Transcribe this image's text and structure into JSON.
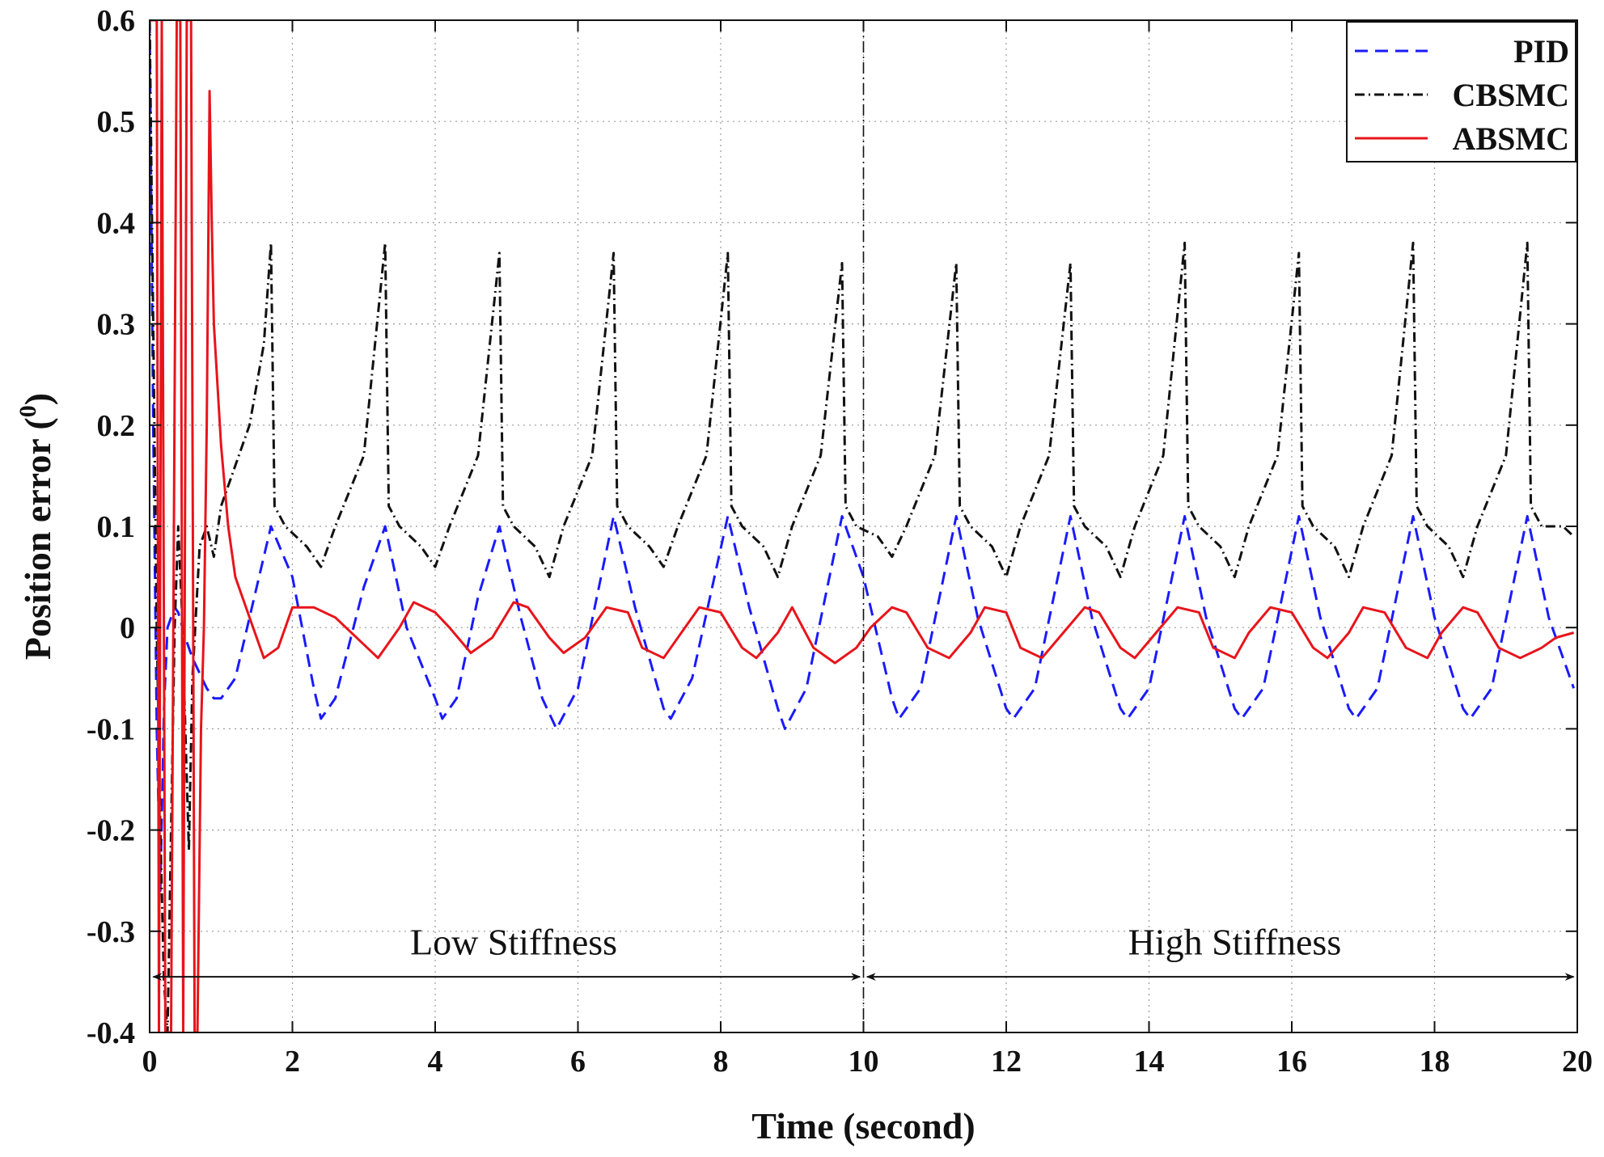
{
  "chart_data": {
    "type": "line",
    "xlabel": "Time (second)",
    "ylabel_main": "Position error (",
    "ylabel_sup": "0",
    "ylabel_close": ")",
    "xlim": [
      0,
      20
    ],
    "ylim": [
      -0.4,
      0.6
    ],
    "xticks": [
      0,
      2,
      4,
      6,
      8,
      10,
      12,
      14,
      16,
      18,
      20
    ],
    "yticks": [
      -0.4,
      -0.3,
      -0.2,
      -0.1,
      0,
      0.1,
      0.2,
      0.3,
      0.4,
      0.5,
      0.6
    ],
    "xtick_labels": [
      "0",
      "2",
      "4",
      "6",
      "8",
      "10",
      "12",
      "14",
      "16",
      "18",
      "20"
    ],
    "ytick_labels": [
      "-0.4",
      "-0.3",
      "-0.2",
      "-0.1",
      "0",
      "0.1",
      "0.2",
      "0.3",
      "0.4",
      "0.5",
      "0.6"
    ],
    "grid": true,
    "legend_position": "top-right",
    "divider_x": 10,
    "annotations": [
      {
        "text": "Low Stiffness",
        "x_center": 5.1,
        "y": -0.31,
        "arrow_from": 0.05,
        "arrow_to": 9.95,
        "arrow_y": -0.345
      },
      {
        "text": "High Stiffness",
        "x_center": 15.2,
        "y": -0.31,
        "arrow_from": 10.05,
        "arrow_to": 19.95,
        "arrow_y": -0.345
      }
    ],
    "series": [
      {
        "name": "PID",
        "color": "#1a1aff",
        "style": "dashed",
        "x": [
          0,
          0.05,
          0.1,
          0.15,
          0.2,
          0.25,
          0.3,
          0.35,
          0.4,
          0.5,
          0.6,
          0.8,
          0.9,
          1.0,
          1.2,
          1.4,
          1.7,
          2.0,
          2.3,
          2.4,
          2.6,
          3.0,
          3.3,
          3.6,
          4.0,
          4.1,
          4.3,
          4.6,
          4.9,
          5.2,
          5.5,
          5.7,
          6.0,
          6.5,
          6.8,
          7.2,
          7.3,
          7.6,
          8.1,
          8.4,
          8.8,
          8.9,
          9.2,
          9.7,
          10.0,
          10.4,
          10.5,
          10.8,
          11.3,
          11.6,
          12.0,
          12.1,
          12.4,
          12.9,
          13.2,
          13.6,
          13.7,
          14.0,
          14.5,
          14.8,
          15.2,
          15.3,
          15.6,
          16.1,
          16.4,
          16.8,
          16.9,
          17.2,
          17.7,
          18.0,
          18.4,
          18.5,
          18.8,
          19.3,
          19.6,
          19.95
        ],
        "y": [
          0.6,
          0.2,
          -0.1,
          -0.26,
          -0.08,
          0.0,
          0.01,
          0.02,
          0.015,
          -0.01,
          -0.03,
          -0.06,
          -0.07,
          -0.07,
          -0.05,
          0.01,
          0.1,
          0.05,
          -0.06,
          -0.09,
          -0.07,
          0.04,
          0.1,
          0.0,
          -0.07,
          -0.09,
          -0.07,
          0.03,
          0.1,
          0.01,
          -0.07,
          -0.1,
          -0.06,
          0.11,
          0.02,
          -0.08,
          -0.09,
          -0.05,
          0.11,
          0.02,
          -0.08,
          -0.1,
          -0.06,
          0.11,
          0.05,
          -0.07,
          -0.09,
          -0.06,
          0.11,
          0.01,
          -0.08,
          -0.09,
          -0.06,
          0.11,
          0.01,
          -0.08,
          -0.09,
          -0.06,
          0.11,
          0.01,
          -0.08,
          -0.09,
          -0.06,
          0.11,
          0.01,
          -0.08,
          -0.09,
          -0.06,
          0.11,
          0.01,
          -0.08,
          -0.09,
          -0.06,
          0.11,
          0.01,
          -0.06
        ]
      },
      {
        "name": "CBSMC",
        "color": "#111111",
        "style": "dashdot",
        "x": [
          0,
          0.05,
          0.1,
          0.15,
          0.2,
          0.25,
          0.3,
          0.35,
          0.4,
          0.45,
          0.5,
          0.55,
          0.6,
          0.7,
          0.8,
          0.9,
          1.0,
          1.2,
          1.4,
          1.6,
          1.7,
          1.75,
          1.9,
          2.2,
          2.4,
          2.6,
          3.0,
          3.3,
          3.35,
          3.5,
          3.8,
          4.0,
          4.2,
          4.6,
          4.9,
          4.95,
          5.1,
          5.4,
          5.6,
          5.8,
          6.2,
          6.5,
          6.55,
          6.7,
          7.0,
          7.2,
          7.4,
          7.8,
          8.1,
          8.15,
          8.3,
          8.6,
          8.8,
          9.0,
          9.4,
          9.7,
          9.75,
          9.9,
          10.2,
          10.4,
          10.6,
          11.0,
          11.3,
          11.35,
          11.5,
          11.8,
          12.0,
          12.2,
          12.6,
          12.9,
          12.95,
          13.1,
          13.4,
          13.6,
          13.8,
          14.2,
          14.5,
          14.55,
          14.7,
          15.0,
          15.2,
          15.4,
          15.8,
          16.1,
          16.15,
          16.3,
          16.6,
          16.8,
          17.0,
          17.4,
          17.7,
          17.75,
          17.9,
          18.2,
          18.4,
          18.6,
          19.0,
          19.3,
          19.35,
          19.5,
          19.8,
          19.95
        ],
        "y": [
          0.6,
          0.3,
          0.0,
          -0.2,
          -0.35,
          -0.4,
          -0.2,
          0.0,
          0.1,
          0.02,
          -0.1,
          -0.22,
          -0.05,
          0.08,
          0.1,
          0.07,
          0.12,
          0.16,
          0.2,
          0.28,
          0.38,
          0.12,
          0.1,
          0.08,
          0.06,
          0.1,
          0.17,
          0.38,
          0.12,
          0.1,
          0.08,
          0.06,
          0.1,
          0.17,
          0.37,
          0.12,
          0.1,
          0.08,
          0.05,
          0.1,
          0.17,
          0.37,
          0.12,
          0.1,
          0.08,
          0.06,
          0.1,
          0.17,
          0.37,
          0.12,
          0.1,
          0.08,
          0.05,
          0.1,
          0.17,
          0.36,
          0.12,
          0.1,
          0.09,
          0.07,
          0.1,
          0.17,
          0.36,
          0.12,
          0.1,
          0.08,
          0.05,
          0.1,
          0.17,
          0.36,
          0.12,
          0.1,
          0.08,
          0.05,
          0.1,
          0.17,
          0.38,
          0.12,
          0.1,
          0.08,
          0.05,
          0.1,
          0.17,
          0.37,
          0.12,
          0.1,
          0.08,
          0.05,
          0.1,
          0.17,
          0.38,
          0.12,
          0.1,
          0.08,
          0.05,
          0.1,
          0.17,
          0.38,
          0.12,
          0.1,
          0.1,
          0.09
        ]
      },
      {
        "name": "ABSMC",
        "color": "#e8141b",
        "style": "solid",
        "x": [
          0,
          0.1,
          0.13,
          0.17,
          0.22,
          0.3,
          0.38,
          0.43,
          0.47,
          0.52,
          0.58,
          0.63,
          0.67,
          0.72,
          0.76,
          0.8,
          0.84,
          0.87,
          0.9,
          1.0,
          1.1,
          1.2,
          1.4,
          1.6,
          1.8,
          2.0,
          2.3,
          2.6,
          2.9,
          3.2,
          3.5,
          3.7,
          4.0,
          4.2,
          4.5,
          4.8,
          5.1,
          5.3,
          5.6,
          5.8,
          6.1,
          6.4,
          6.7,
          6.9,
          7.2,
          7.4,
          7.7,
          8.0,
          8.3,
          8.5,
          8.8,
          9.0,
          9.3,
          9.6,
          9.9,
          10.1,
          10.4,
          10.6,
          10.9,
          11.2,
          11.5,
          11.7,
          12.0,
          12.2,
          12.5,
          12.8,
          13.1,
          13.3,
          13.6,
          13.8,
          14.1,
          14.4,
          14.7,
          14.9,
          15.2,
          15.4,
          15.7,
          16.0,
          16.3,
          16.5,
          16.8,
          17.0,
          17.3,
          17.6,
          17.9,
          18.1,
          18.4,
          18.6,
          18.9,
          19.2,
          19.5,
          19.7,
          19.95
        ],
        "y": [
          0.6,
          0.6,
          -0.4,
          0.6,
          -0.4,
          -0.4,
          0.6,
          0.6,
          -0.4,
          0.6,
          0.6,
          -0.4,
          -0.4,
          -0.1,
          0.0,
          0.2,
          0.53,
          0.4,
          0.3,
          0.18,
          0.1,
          0.05,
          0.01,
          -0.03,
          -0.02,
          0.02,
          0.02,
          0.01,
          -0.01,
          -0.03,
          0.0,
          0.025,
          0.015,
          0.0,
          -0.025,
          -0.01,
          0.025,
          0.02,
          -0.01,
          -0.025,
          -0.01,
          0.02,
          0.015,
          -0.02,
          -0.03,
          -0.01,
          0.02,
          0.015,
          -0.02,
          -0.03,
          -0.005,
          0.02,
          -0.02,
          -0.035,
          -0.02,
          0.0,
          0.02,
          0.015,
          -0.02,
          -0.03,
          -0.005,
          0.02,
          0.015,
          -0.02,
          -0.03,
          -0.005,
          0.02,
          0.015,
          -0.02,
          -0.03,
          -0.005,
          0.02,
          0.015,
          -0.02,
          -0.03,
          -0.005,
          0.02,
          0.015,
          -0.02,
          -0.03,
          -0.005,
          0.02,
          0.015,
          -0.02,
          -0.03,
          -0.005,
          0.02,
          0.015,
          -0.02,
          -0.03,
          -0.02,
          -0.01,
          -0.005
        ]
      }
    ]
  }
}
